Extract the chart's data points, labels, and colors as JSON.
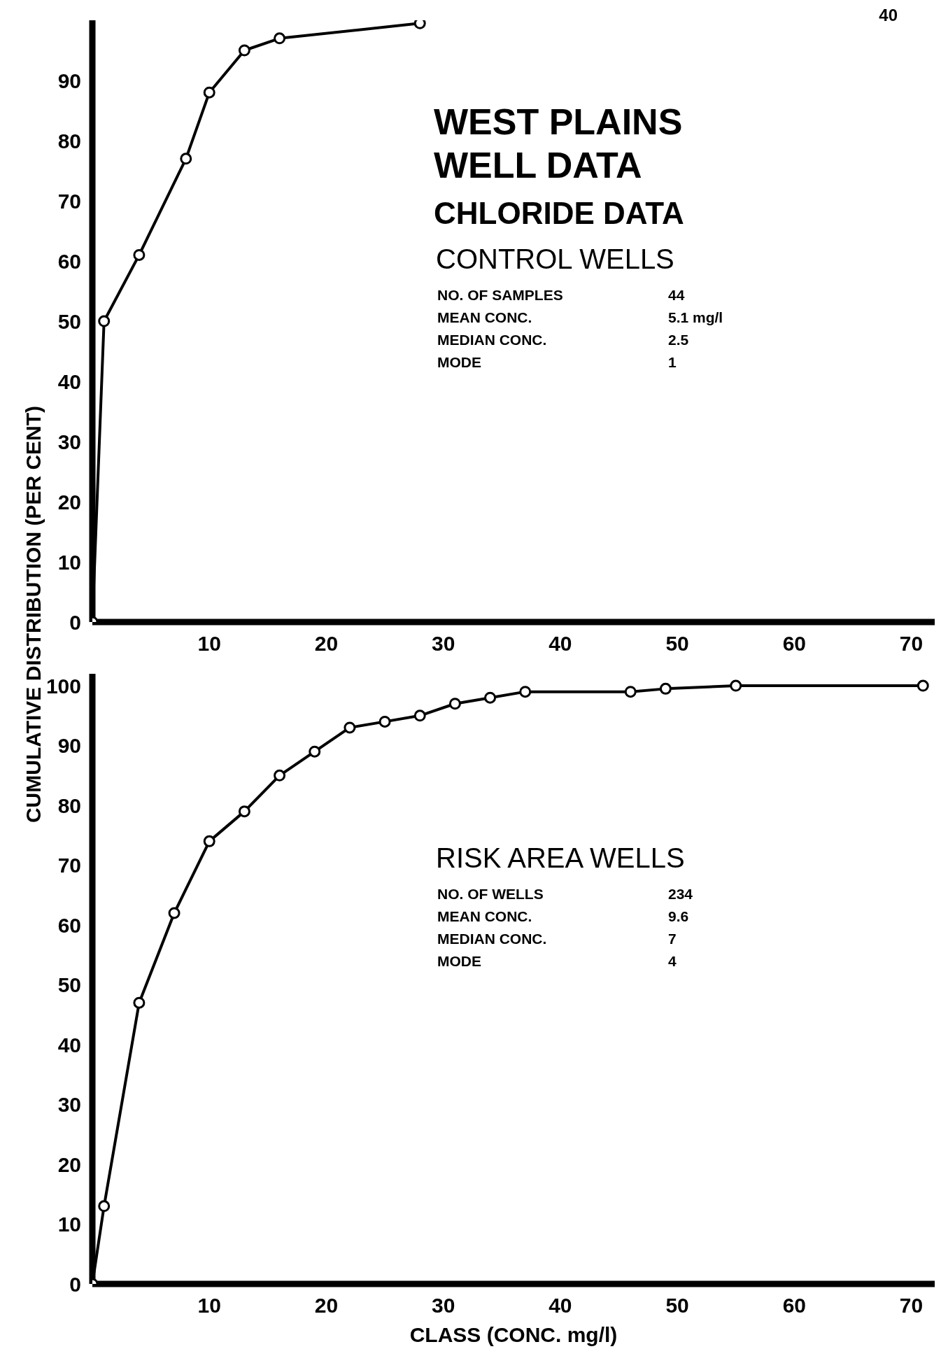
{
  "chart_data": [
    {
      "type": "line",
      "title": "WEST PLAINS WELL DATA",
      "subtitle": "CHLORIDE DATA",
      "ylabel": "CUMULATIVE DISTRIBUTION (PER CENT)",
      "annotations": [
        "40",
        "CONTROL WELLS",
        "NO. OF SAMPLES",
        "44",
        "MEAN CONC.",
        "5.1 mg/l",
        "MEDIAN CONC.",
        "2.5",
        "MODE",
        "1"
      ],
      "x": [
        0,
        1,
        4,
        8,
        10,
        13,
        16,
        28
      ],
      "series": [
        {
          "color": "#000000",
          "values": [
            0,
            50,
            61,
            77,
            88,
            95,
            97,
            99.5
          ]
        }
      ],
      "xlim": [
        0,
        72
      ],
      "xticks": [
        10,
        20,
        30,
        40,
        50,
        60,
        70
      ],
      "ylim": [
        0,
        100
      ],
      "yticks": [
        0,
        10,
        20,
        30,
        40,
        50,
        60,
        70,
        80,
        90
      ],
      "marker": "circle",
      "line_style": "solid",
      "grid": false,
      "legend": false
    },
    {
      "type": "line",
      "xlabel": "CLASS (CONC. mg/l)",
      "annotations": [
        "RISK AREA WELLS",
        "NO. OF WELLS",
        "234",
        "MEAN CONC.",
        "9.6",
        "MEDIAN CONC.",
        "7",
        "MODE",
        "4"
      ],
      "x": [
        0,
        1,
        4,
        7,
        10,
        13,
        16,
        19,
        22,
        25,
        28,
        31,
        34,
        37,
        46,
        49,
        55,
        71
      ],
      "series": [
        {
          "color": "#000000",
          "values": [
            0,
            13,
            47,
            62,
            74,
            79,
            85,
            89,
            93,
            94,
            95,
            97,
            98,
            99,
            99,
            99.5,
            100,
            100
          ]
        }
      ],
      "xlim": [
        0,
        72
      ],
      "xticks": [
        10,
        20,
        30,
        40,
        50,
        60,
        70
      ],
      "ylim": [
        0,
        102
      ],
      "yticks": [
        0,
        10,
        20,
        30,
        40,
        50,
        60,
        70,
        80,
        90,
        100
      ],
      "marker": "circle",
      "line_style": "solid",
      "grid": false,
      "legend": false
    }
  ]
}
